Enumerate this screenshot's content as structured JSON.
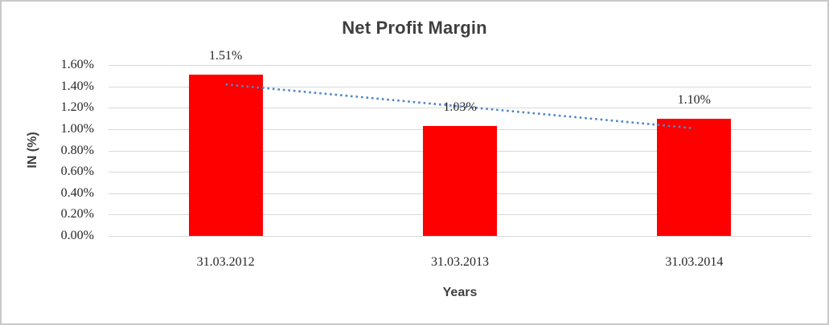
{
  "chart_data": {
    "type": "bar",
    "title": "Net Profit Margin",
    "categories": [
      "31.03.2012",
      "31.03.2013",
      "31.03.2014"
    ],
    "values": [
      1.51,
      1.03,
      1.1
    ],
    "data_labels": [
      "1.51%",
      "1.03%",
      "1.10%"
    ],
    "xlabel": "Years",
    "ylabel": "IN (%)",
    "ylim": [
      0,
      1.6
    ],
    "ytick_step": 0.2,
    "yticks": [
      "0.00%",
      "0.20%",
      "0.40%",
      "0.60%",
      "0.80%",
      "1.00%",
      "1.20%",
      "1.40%",
      "1.60%"
    ],
    "grid": true,
    "legend": "none",
    "bar_color": "#ff0000",
    "gridline_color": "#d9d9d9",
    "text_color": "#262626",
    "title_color": "#3f3f3f",
    "trendline": {
      "type": "linear",
      "style": "dotted",
      "color": "#4e86c8",
      "start_value": 1.418,
      "end_value": 1.008
    }
  }
}
